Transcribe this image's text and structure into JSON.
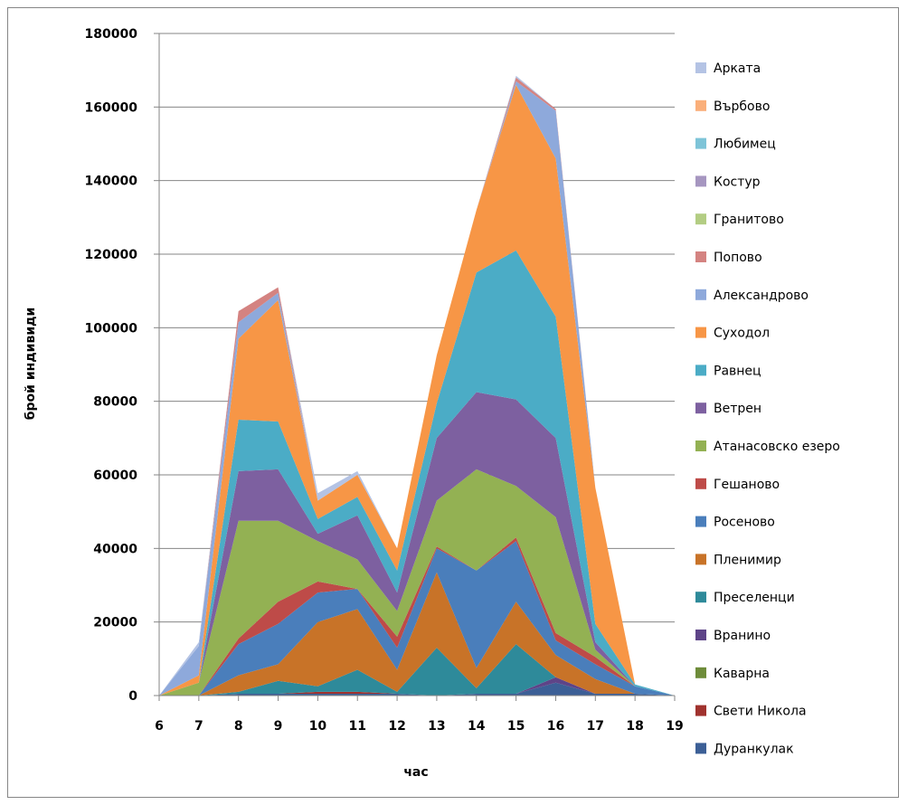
{
  "chart_data": {
    "type": "area",
    "stacked": true,
    "xlabel": "час",
    "ylabel": "брой индивиди",
    "ylim": [
      0,
      180000
    ],
    "yticks": [
      "0",
      "20000",
      "40000",
      "60000",
      "80000",
      "100000",
      "120000",
      "140000",
      "160000",
      "180000"
    ],
    "x": [
      "6",
      "7",
      "8",
      "9",
      "10",
      "11",
      "12",
      "13",
      "14",
      "15",
      "16",
      "17",
      "18",
      "19"
    ],
    "grid": "horizontal",
    "legend_position": "right",
    "series": [
      {
        "name": "Дуранкулак",
        "color": "#3C5F96",
        "values": [
          0,
          0,
          500,
          500,
          500,
          500,
          500,
          0,
          500,
          500,
          3500,
          500,
          500,
          0
        ]
      },
      {
        "name": "Свети Никола",
        "color": "#A0322E",
        "values": [
          0,
          0,
          0,
          0,
          500,
          500,
          0,
          0,
          0,
          0,
          0,
          0,
          0,
          0
        ]
      },
      {
        "name": "Каварна",
        "color": "#6E8C3A",
        "values": [
          0,
          0,
          0,
          0,
          0,
          0,
          0,
          0,
          0,
          0,
          0,
          0,
          0,
          0
        ]
      },
      {
        "name": "Вранино",
        "color": "#5E4488",
        "values": [
          0,
          0,
          0,
          0,
          0,
          0,
          0,
          0,
          0,
          0,
          1500,
          0,
          0,
          0
        ]
      },
      {
        "name": "Преселенци",
        "color": "#2E8A9A",
        "values": [
          0,
          0,
          500,
          3500,
          1500,
          6000,
          500,
          13000,
          1500,
          13500,
          0,
          0,
          0,
          0
        ]
      },
      {
        "name": "Пленимир",
        "color": "#C87328",
        "values": [
          0,
          0,
          4500,
          4500,
          17500,
          16500,
          6000,
          20500,
          5500,
          11500,
          6000,
          4000,
          0,
          0
        ]
      },
      {
        "name": "Росеново",
        "color": "#4A7EBB",
        "values": [
          0,
          0,
          8500,
          11000,
          8000,
          5500,
          6000,
          6500,
          26500,
          16500,
          4000,
          4000,
          2000,
          0
        ]
      },
      {
        "name": "Гешаново",
        "color": "#BE4B48",
        "values": [
          0,
          0,
          1500,
          6000,
          3000,
          0,
          3000,
          500,
          0,
          1000,
          2000,
          2000,
          0,
          0
        ]
      },
      {
        "name": "Атанасовско езеро",
        "color": "#93B153",
        "values": [
          0,
          3500,
          32000,
          22000,
          11000,
          8000,
          7000,
          12500,
          27500,
          14000,
          31500,
          2000,
          0,
          0
        ]
      },
      {
        "name": "Ветрен",
        "color": "#7D60A0",
        "values": [
          0,
          0,
          13500,
          14000,
          2000,
          12000,
          5000,
          17000,
          21000,
          23500,
          21500,
          2000,
          0,
          0
        ]
      },
      {
        "name": "Равнец",
        "color": "#4BACC6",
        "values": [
          0,
          0,
          14000,
          13000,
          4000,
          5000,
          6000,
          9500,
          32500,
          40500,
          33000,
          5000,
          500,
          0
        ]
      },
      {
        "name": "Суходол",
        "color": "#F79646",
        "values": [
          0,
          2000,
          22000,
          33000,
          5000,
          6000,
          6000,
          13000,
          17000,
          45000,
          43000,
          37000,
          0,
          0
        ]
      },
      {
        "name": "Александрово",
        "color": "#8EA9DB",
        "values": [
          0,
          8000,
          4500,
          2000,
          0,
          0,
          0,
          0,
          0,
          1000,
          13000,
          0,
          0,
          0
        ]
      },
      {
        "name": "Попово",
        "color": "#D48381",
        "values": [
          0,
          0,
          3000,
          1500,
          0,
          0,
          0,
          0,
          0,
          1000,
          500,
          0,
          0,
          0
        ]
      },
      {
        "name": "Гранитово",
        "color": "#B3CD83",
        "values": [
          0,
          0,
          0,
          0,
          0,
          0,
          0,
          0,
          0,
          0,
          0,
          0,
          0,
          0
        ]
      },
      {
        "name": "Костур",
        "color": "#A696C0",
        "values": [
          0,
          0,
          0,
          0,
          0,
          0,
          0,
          0,
          0,
          0,
          0,
          0,
          0,
          0
        ]
      },
      {
        "name": "Любимец",
        "color": "#7EC4D8",
        "values": [
          0,
          0,
          0,
          0,
          0,
          0,
          0,
          0,
          0,
          0,
          0,
          0,
          0,
          0
        ]
      },
      {
        "name": "Върбово",
        "color": "#FAAF7A",
        "values": [
          0,
          0,
          0,
          0,
          0,
          0,
          0,
          0,
          0,
          0,
          0,
          0,
          0,
          0
        ]
      },
      {
        "name": "Арката",
        "color": "#B4C3E4",
        "values": [
          0,
          1000,
          0,
          0,
          2000,
          1000,
          0,
          0,
          0,
          500,
          0,
          0,
          0,
          0
        ]
      }
    ]
  }
}
